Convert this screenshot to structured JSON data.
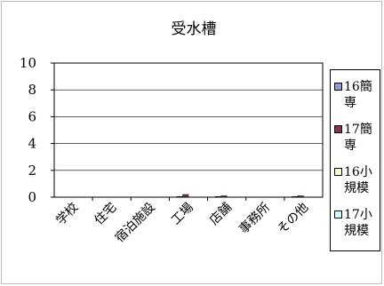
{
  "chart_data": {
    "type": "bar",
    "title": "受水槽",
    "categories": [
      "学校",
      "住宅",
      "宿泊施設",
      "工場",
      "店舗",
      "事務所",
      "その他"
    ],
    "series": [
      {
        "name": "16簡専",
        "color": "#8e9bd6",
        "values": [
          0,
          0,
          0,
          0.05,
          0.05,
          0,
          0.05
        ]
      },
      {
        "name": "17簡専",
        "color": "#8b2f4a",
        "values": [
          0,
          0,
          0,
          0.2,
          0.1,
          0,
          0.1
        ]
      },
      {
        "name": "16小規模",
        "color": "#ffffcc",
        "values": [
          0,
          0,
          0,
          0,
          0,
          0,
          0
        ]
      },
      {
        "name": "17小規模",
        "color": "#ccffff",
        "values": [
          0,
          0,
          0,
          0,
          0,
          0,
          0
        ]
      }
    ],
    "y_ticks": [
      "0",
      "2",
      "4",
      "6",
      "8",
      "10"
    ],
    "ylim": [
      0,
      10
    ],
    "grid": true,
    "legend": "right"
  }
}
